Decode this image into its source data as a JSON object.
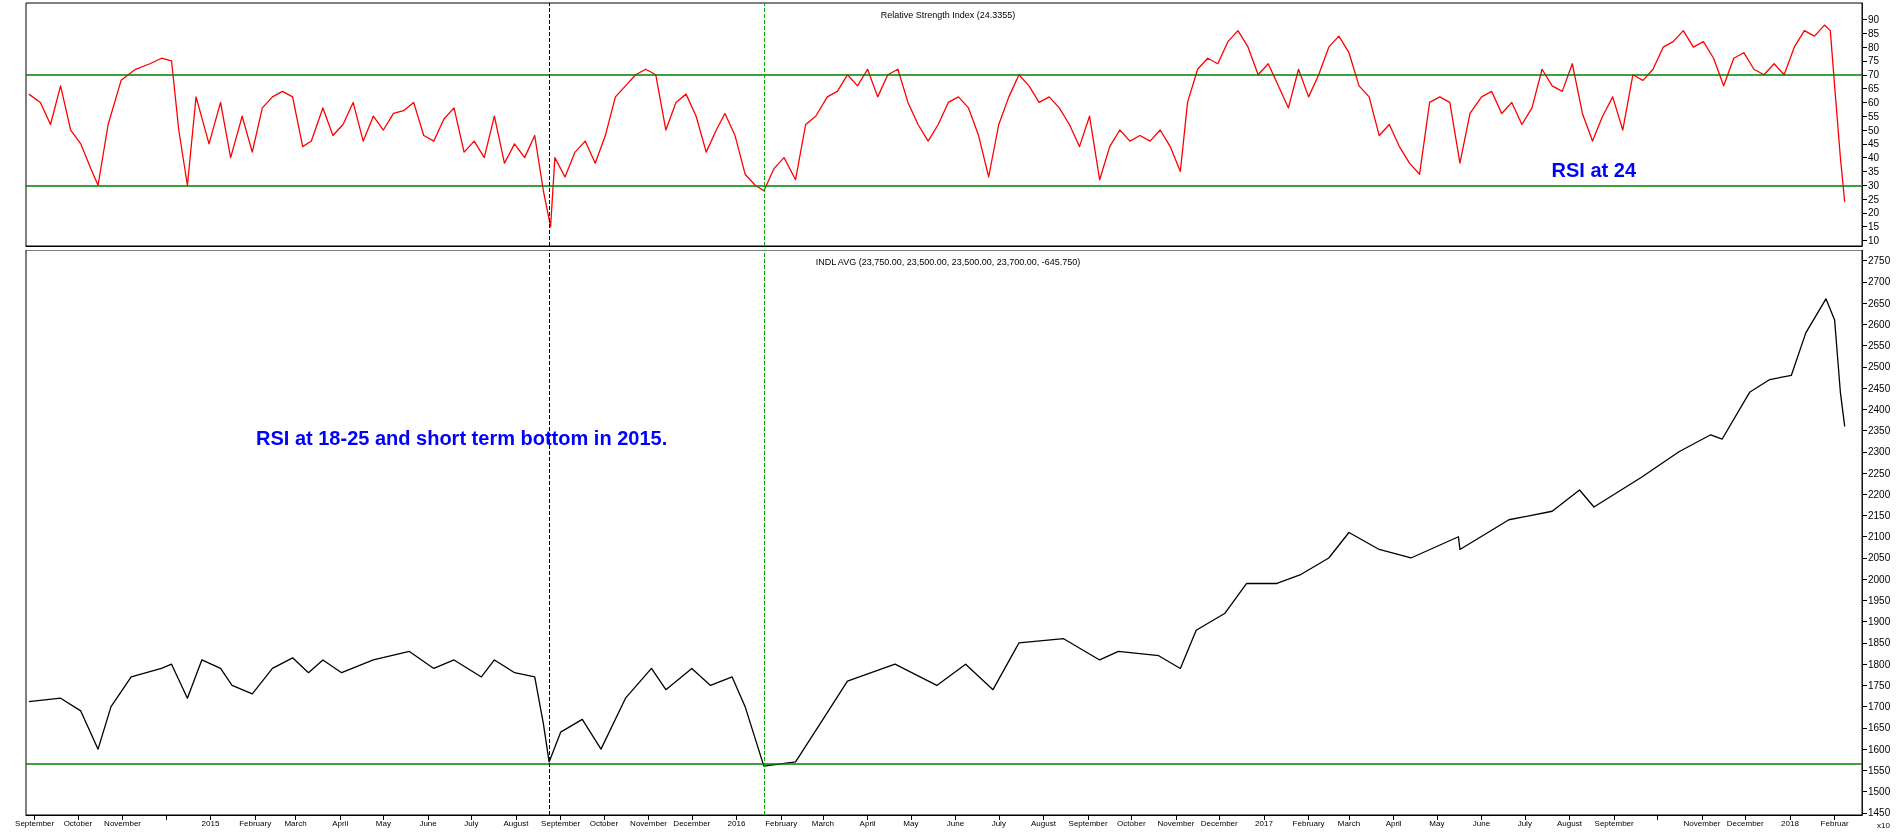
{
  "chart_data": [
    {
      "type": "line",
      "title": "Relative Strength Index (24.3355)",
      "annotations": [
        "RSI at 24"
      ],
      "tick_labels": "y",
      "xlim": [
        "2014-08-26",
        "2018-02-20"
      ],
      "ylim": [
        8,
        96
      ],
      "yticks": [
        10,
        15,
        20,
        25,
        30,
        35,
        40,
        45,
        50,
        55,
        60,
        65,
        70,
        75,
        80,
        85,
        90
      ],
      "x": [
        "2014-08-28",
        "2014-09-05",
        "2014-09-12",
        "2014-09-19",
        "2014-09-26",
        "2014-10-03",
        "2014-10-10",
        "2014-10-15",
        "2014-10-22",
        "2014-10-31",
        "2014-11-10",
        "2014-11-20",
        "2014-11-28",
        "2014-12-05",
        "2014-12-10",
        "2014-12-16",
        "2014-12-22",
        "2014-12-31",
        "2015-01-08",
        "2015-01-15",
        "2015-01-23",
        "2015-01-30",
        "2015-02-06",
        "2015-02-13",
        "2015-02-20",
        "2015-02-27",
        "2015-03-06",
        "2015-03-12",
        "2015-03-20",
        "2015-03-27",
        "2015-04-03",
        "2015-04-10",
        "2015-04-17",
        "2015-04-24",
        "2015-05-01",
        "2015-05-08",
        "2015-05-15",
        "2015-05-22",
        "2015-05-29",
        "2015-06-05",
        "2015-06-12",
        "2015-06-19",
        "2015-06-26",
        "2015-07-03",
        "2015-07-10",
        "2015-07-17",
        "2015-07-24",
        "2015-07-31",
        "2015-08-07",
        "2015-08-14",
        "2015-08-20",
        "2015-08-25",
        "2015-08-28",
        "2015-09-04",
        "2015-09-11",
        "2015-09-18",
        "2015-09-25",
        "2015-10-02",
        "2015-10-09",
        "2015-10-16",
        "2015-10-23",
        "2015-10-30",
        "2015-11-06",
        "2015-11-13",
        "2015-11-20",
        "2015-11-27",
        "2015-12-04",
        "2015-12-11",
        "2015-12-18",
        "2015-12-24",
        "2015-12-31",
        "2016-01-07",
        "2016-01-14",
        "2016-01-20",
        "2016-01-27",
        "2016-02-03",
        "2016-02-11",
        "2016-02-18",
        "2016-02-25",
        "2016-03-04",
        "2016-03-11",
        "2016-03-18",
        "2016-03-25",
        "2016-04-01",
        "2016-04-08",
        "2016-04-15",
        "2016-04-22",
        "2016-04-29",
        "2016-05-06",
        "2016-05-13",
        "2016-05-20",
        "2016-05-27",
        "2016-06-03",
        "2016-06-10",
        "2016-06-17",
        "2016-06-24",
        "2016-07-01",
        "2016-07-08",
        "2016-07-15",
        "2016-07-22",
        "2016-07-29",
        "2016-08-05",
        "2016-08-12",
        "2016-08-19",
        "2016-08-26",
        "2016-09-02",
        "2016-09-09",
        "2016-09-16",
        "2016-09-23",
        "2016-09-30",
        "2016-10-07",
        "2016-10-14",
        "2016-10-21",
        "2016-10-28",
        "2016-11-04",
        "2016-11-09",
        "2016-11-16",
        "2016-11-23",
        "2016-11-30",
        "2016-12-07",
        "2016-12-14",
        "2016-12-21",
        "2016-12-28",
        "2017-01-04",
        "2017-01-11",
        "2017-01-18",
        "2017-01-25",
        "2017-02-01",
        "2017-02-08",
        "2017-02-15",
        "2017-02-22",
        "2017-03-01",
        "2017-03-08",
        "2017-03-15",
        "2017-03-22",
        "2017-03-29",
        "2017-04-05",
        "2017-04-12",
        "2017-04-19",
        "2017-04-26",
        "2017-05-03",
        "2017-05-10",
        "2017-05-17",
        "2017-05-24",
        "2017-06-01",
        "2017-06-08",
        "2017-06-15",
        "2017-06-22",
        "2017-06-29",
        "2017-07-06",
        "2017-07-13",
        "2017-07-20",
        "2017-07-27",
        "2017-08-03",
        "2017-08-10",
        "2017-08-17",
        "2017-08-24",
        "2017-08-31",
        "2017-09-07",
        "2017-09-14",
        "2017-09-21",
        "2017-09-28",
        "2017-10-05",
        "2017-10-12",
        "2017-10-19",
        "2017-10-26",
        "2017-11-02",
        "2017-11-09",
        "2017-11-16",
        "2017-11-23",
        "2017-11-30",
        "2017-12-07",
        "2017-12-14",
        "2017-12-21",
        "2017-12-28",
        "2018-01-04",
        "2018-01-11",
        "2018-01-18",
        "2018-01-25",
        "2018-01-29",
        "2018-02-01",
        "2018-02-05",
        "2018-02-08"
      ],
      "series": [
        {
          "color": "#ff0000",
          "values": [
            63,
            60,
            52,
            66,
            50,
            45,
            36,
            30,
            52,
            68,
            72,
            74,
            76,
            75,
            50,
            30,
            62,
            45,
            60,
            40,
            55,
            42,
            58,
            62,
            64,
            62,
            44,
            46,
            58,
            48,
            52,
            60,
            46,
            55,
            50,
            56,
            57,
            60,
            48,
            46,
            54,
            58,
            42,
            46,
            40,
            55,
            38,
            45,
            40,
            48,
            28,
            15,
            40,
            33,
            42,
            46,
            38,
            48,
            62,
            66,
            70,
            72,
            70,
            50,
            60,
            63,
            55,
            42,
            50,
            56,
            48,
            34,
            30,
            28,
            36,
            40,
            32,
            52,
            55,
            62,
            64,
            70,
            66,
            72,
            62,
            70,
            72,
            60,
            52,
            46,
            52,
            60,
            62,
            58,
            48,
            33,
            52,
            62,
            70,
            66,
            60,
            62,
            58,
            52,
            44,
            55,
            32,
            44,
            50,
            46,
            48,
            46,
            50,
            44,
            35,
            60,
            72,
            76,
            74,
            82,
            86,
            80,
            70,
            74,
            66,
            58,
            72,
            62,
            70,
            80,
            84,
            78,
            66,
            62,
            48,
            52,
            44,
            38,
            34,
            60,
            62,
            60,
            38,
            56,
            62,
            64,
            56,
            60,
            52,
            58,
            72,
            66,
            64,
            74,
            56,
            46,
            55,
            62,
            50,
            70,
            68,
            72,
            80,
            82,
            86,
            80,
            82,
            76,
            66,
            76,
            78,
            72,
            70,
            74,
            70,
            80,
            86,
            84,
            88,
            86,
            66,
            40,
            24
          ]
        }
      ],
      "ref_lines": [
        {
          "axis": "y",
          "value": 70,
          "color": "#008000",
          "line_style": "solid"
        },
        {
          "axis": "y",
          "value": 30,
          "color": "#008000",
          "line_style": "solid"
        },
        {
          "axis": "x",
          "value": "2015-08-24",
          "color": "#000000",
          "line_style": "dashed"
        },
        {
          "axis": "x",
          "value": "2016-01-20",
          "color": "#00aa00",
          "line_style": "dashed"
        }
      ]
    },
    {
      "type": "line",
      "title": "INDL AVG (23,750.00, 23,500.00, 23,500.00, 23,700.00, -645.750)",
      "ylabel": "x10",
      "annotations": [
        "RSI at 18-25 and short term bottom in 2015."
      ],
      "xlim": [
        "2014-08-26",
        "2018-02-20"
      ],
      "ylim": [
        1445,
        2775
      ],
      "yticks": [
        1450,
        1500,
        1550,
        1600,
        1650,
        1700,
        1750,
        1800,
        1850,
        1900,
        1950,
        2000,
        2050,
        2100,
        2150,
        2200,
        2250,
        2300,
        2350,
        2400,
        2450,
        2500,
        2550,
        2600,
        2650,
        2700,
        2750
      ],
      "xticks": [
        {
          "value": "2014-09-01",
          "label": "September"
        },
        {
          "value": "2014-10-01",
          "label": "October"
        },
        {
          "value": "2014-11-01",
          "label": "November"
        },
        {
          "value": "2014-12-01",
          "label": null
        },
        {
          "value": "2015-01-01",
          "label": "2015"
        },
        {
          "value": "2015-02-01",
          "label": "February"
        },
        {
          "value": "2015-03-01",
          "label": "March"
        },
        {
          "value": "2015-04-01",
          "label": "April"
        },
        {
          "value": "2015-05-01",
          "label": "May"
        },
        {
          "value": "2015-06-01",
          "label": "June"
        },
        {
          "value": "2015-07-01",
          "label": "July"
        },
        {
          "value": "2015-08-01",
          "label": "August"
        },
        {
          "value": "2015-09-01",
          "label": "September"
        },
        {
          "value": "2015-10-01",
          "label": "October"
        },
        {
          "value": "2015-11-01",
          "label": "November"
        },
        {
          "value": "2015-12-01",
          "label": "December"
        },
        {
          "value": "2016-01-01",
          "label": "2016"
        },
        {
          "value": "2016-02-01",
          "label": "February"
        },
        {
          "value": "2016-03-01",
          "label": "March"
        },
        {
          "value": "2016-04-01",
          "label": "April"
        },
        {
          "value": "2016-05-01",
          "label": "May"
        },
        {
          "value": "2016-06-01",
          "label": "June"
        },
        {
          "value": "2016-07-01",
          "label": "July"
        },
        {
          "value": "2016-08-01",
          "label": "August"
        },
        {
          "value": "2016-09-01",
          "label": "September"
        },
        {
          "value": "2016-10-01",
          "label": "October"
        },
        {
          "value": "2016-11-01",
          "label": "November"
        },
        {
          "value": "2016-12-01",
          "label": "December"
        },
        {
          "value": "2017-01-01",
          "label": "2017"
        },
        {
          "value": "2017-02-01",
          "label": "February"
        },
        {
          "value": "2017-03-01",
          "label": "March"
        },
        {
          "value": "2017-04-01",
          "label": "April"
        },
        {
          "value": "2017-05-01",
          "label": "May"
        },
        {
          "value": "2017-06-01",
          "label": "June"
        },
        {
          "value": "2017-07-01",
          "label": "July"
        },
        {
          "value": "2017-08-01",
          "label": "August"
        },
        {
          "value": "2017-09-01",
          "label": "September"
        },
        {
          "value": "2017-10-01",
          "label": null
        },
        {
          "value": "2017-11-01",
          "label": "November"
        },
        {
          "value": "2017-12-01",
          "label": "December"
        },
        {
          "value": "2018-01-01",
          "label": "2018"
        },
        {
          "value": "2018-02-01",
          "label": "Februar"
        }
      ],
      "x": [
        "2014-08-28",
        "2014-09-19",
        "2014-10-03",
        "2014-10-15",
        "2014-10-24",
        "2014-11-07",
        "2014-11-28",
        "2014-12-05",
        "2014-12-16",
        "2014-12-26",
        "2015-01-08",
        "2015-01-16",
        "2015-01-30",
        "2015-02-13",
        "2015-02-27",
        "2015-03-10",
        "2015-03-20",
        "2015-04-02",
        "2015-04-24",
        "2015-05-19",
        "2015-06-05",
        "2015-06-19",
        "2015-07-08",
        "2015-07-17",
        "2015-07-31",
        "2015-08-14",
        "2015-08-20",
        "2015-08-24",
        "2015-09-01",
        "2015-09-16",
        "2015-09-29",
        "2015-10-16",
        "2015-11-03",
        "2015-11-13",
        "2015-12-01",
        "2015-12-14",
        "2015-12-29",
        "2016-01-07",
        "2016-01-20",
        "2016-02-11",
        "2016-03-01",
        "2016-03-18",
        "2016-04-20",
        "2016-05-19",
        "2016-06-08",
        "2016-06-27",
        "2016-07-15",
        "2016-08-15",
        "2016-09-09",
        "2016-09-22",
        "2016-10-20",
        "2016-11-04",
        "2016-11-15",
        "2016-12-05",
        "2016-12-20",
        "2017-01-10",
        "2017-01-26",
        "2017-02-15",
        "2017-03-01",
        "2017-03-22",
        "2017-04-13",
        "2017-05-16",
        "2017-05-17",
        "2017-06-20",
        "2017-07-20",
        "2017-08-08",
        "2017-08-18",
        "2017-09-20",
        "2017-10-16",
        "2017-11-07",
        "2017-11-15",
        "2017-12-04",
        "2017-12-18",
        "2018-01-02",
        "2018-01-12",
        "2018-01-26",
        "2018-02-01",
        "2018-02-05",
        "2018-02-08"
      ],
      "series": [
        {
          "color": "#000000",
          "values": [
            1712,
            1720,
            1690,
            1600,
            1700,
            1770,
            1790,
            1800,
            1720,
            1810,
            1790,
            1750,
            1730,
            1790,
            1815,
            1780,
            1810,
            1780,
            1810,
            1830,
            1790,
            1810,
            1770,
            1810,
            1780,
            1770,
            1660,
            1570,
            1640,
            1670,
            1600,
            1720,
            1790,
            1740,
            1790,
            1750,
            1770,
            1700,
            1560,
            1570,
            1670,
            1760,
            1800,
            1750,
            1800,
            1740,
            1850,
            1860,
            1810,
            1830,
            1820,
            1790,
            1880,
            1920,
            1990,
            1990,
            2010,
            2050,
            2110,
            2070,
            2050,
            2100,
            2070,
            2140,
            2160,
            2210,
            2170,
            2240,
            2300,
            2340,
            2330,
            2440,
            2470,
            2480,
            2580,
            2660,
            2610,
            2440,
            2360
          ]
        }
      ],
      "ref_lines": [
        {
          "axis": "y",
          "value": 1565,
          "color": "#008000",
          "line_style": "solid"
        },
        {
          "axis": "x",
          "value": "2015-08-24",
          "color": "#000000",
          "line_style": "dashed"
        },
        {
          "axis": "x",
          "value": "2016-01-20",
          "color": "#00aa00",
          "line_style": "dashed"
        }
      ]
    }
  ]
}
